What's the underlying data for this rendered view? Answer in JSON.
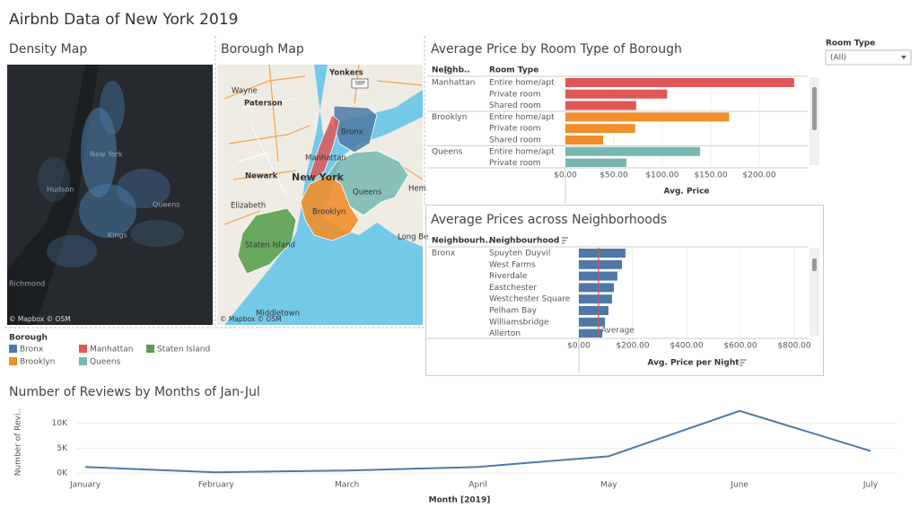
{
  "header": {
    "title": "Airbnb Data of New York 2019"
  },
  "density_map": {
    "title": "Density Map",
    "labels": [
      "New York",
      "Hudson",
      "Queens",
      "Kings",
      "Richmond"
    ],
    "credit": "© Mapbox © OSM"
  },
  "borough_map": {
    "title": "Borough Map",
    "labels": [
      "Wayne",
      "Paterson",
      "Yonkers",
      "SBP",
      "Bronx",
      "Manhattan",
      "Newark",
      "New York",
      "Queens",
      "Hem",
      "Elizabeth",
      "Brooklyn",
      "Staten Island",
      "Long Be",
      "Middletown"
    ],
    "credit": "© Mapbox © OSM"
  },
  "legend": {
    "title": "Borough",
    "items": [
      {
        "name": "Bronx",
        "color": "#4e79a7"
      },
      {
        "name": "Manhattan",
        "color": "#e15759"
      },
      {
        "name": "Staten Island",
        "color": "#59a14f"
      },
      {
        "name": "Brooklyn",
        "color": "#f28e2b"
      },
      {
        "name": "Queens",
        "color": "#76b7b2"
      }
    ]
  },
  "filter": {
    "title": "Room Type",
    "value": "(All)"
  },
  "chart_data": [
    {
      "type": "bar",
      "orientation": "horizontal",
      "title": "Average Price by Room Type of Borough",
      "column_headers": [
        "Neighb..",
        "Room Type"
      ],
      "panels": [
        {
          "name": "Manhattan",
          "color": "#e15759",
          "categories": [
            "Entire home/apt",
            "Private room",
            "Shared room"
          ],
          "values": [
            236,
            105,
            73
          ]
        },
        {
          "name": "Brooklyn",
          "color": "#f28e2b",
          "categories": [
            "Entire home/apt",
            "Private room",
            "Shared room"
          ],
          "values": [
            169,
            72,
            39
          ]
        },
        {
          "name": "Queens",
          "color": "#76b7b2",
          "categories": [
            "Entire home/apt",
            "Private room"
          ],
          "values": [
            139,
            63
          ]
        }
      ],
      "x_axis_label": "Avg. Price",
      "xlim": [
        0,
        250
      ],
      "xticks": [
        {
          "value": 0,
          "label": "$0.00"
        },
        {
          "value": 50,
          "label": "$50.00"
        },
        {
          "value": 100,
          "label": "$100.00"
        },
        {
          "value": 150,
          "label": "$150.00"
        },
        {
          "value": 200,
          "label": "$200.00"
        }
      ],
      "grid": true
    },
    {
      "type": "bar",
      "orientation": "horizontal",
      "title": "Average Prices across Neighborhoods",
      "column_headers": [
        "Neighbourh..",
        "Neighbourhood"
      ],
      "group": "Bronx",
      "color": "#4e79a7",
      "categories": [
        "Spuyten Duyvil",
        "West Farms",
        "Riverdale",
        "Eastchester",
        "Westchester Square",
        "Pelham Bay",
        "Williamsbridge",
        "Allerton"
      ],
      "values": [
        173,
        160,
        143,
        130,
        123,
        110,
        97,
        87
      ],
      "reference_line": {
        "label": "Average",
        "value": 73,
        "color": "#d9534f"
      },
      "x_axis_label": "Avg. Price per Night",
      "xlim": [
        0,
        850
      ],
      "xticks": [
        {
          "value": 0,
          "label": "$0.00"
        },
        {
          "value": 200,
          "label": "$200.00"
        },
        {
          "value": 400,
          "label": "$400.00"
        },
        {
          "value": 600,
          "label": "$600.00"
        },
        {
          "value": 800,
          "label": "$800.00"
        }
      ],
      "grid": true
    },
    {
      "type": "line",
      "title": "Number of Reviews by Months of Jan-Jul",
      "categories": [
        "January",
        "February",
        "March",
        "April",
        "May",
        "June",
        "July"
      ],
      "values": [
        1250,
        180,
        540,
        1250,
        3400,
        12500,
        4460
      ],
      "color": "#4e79a7",
      "y_axis_label": "Number of Revi..",
      "x_axis_label": "Month [2019]",
      "ylim": [
        -500,
        13000
      ],
      "yticks": [
        {
          "value": 0,
          "label": "0K"
        },
        {
          "value": 5000,
          "label": "5K"
        },
        {
          "value": 10000,
          "label": "10K"
        }
      ],
      "grid": true
    }
  ]
}
